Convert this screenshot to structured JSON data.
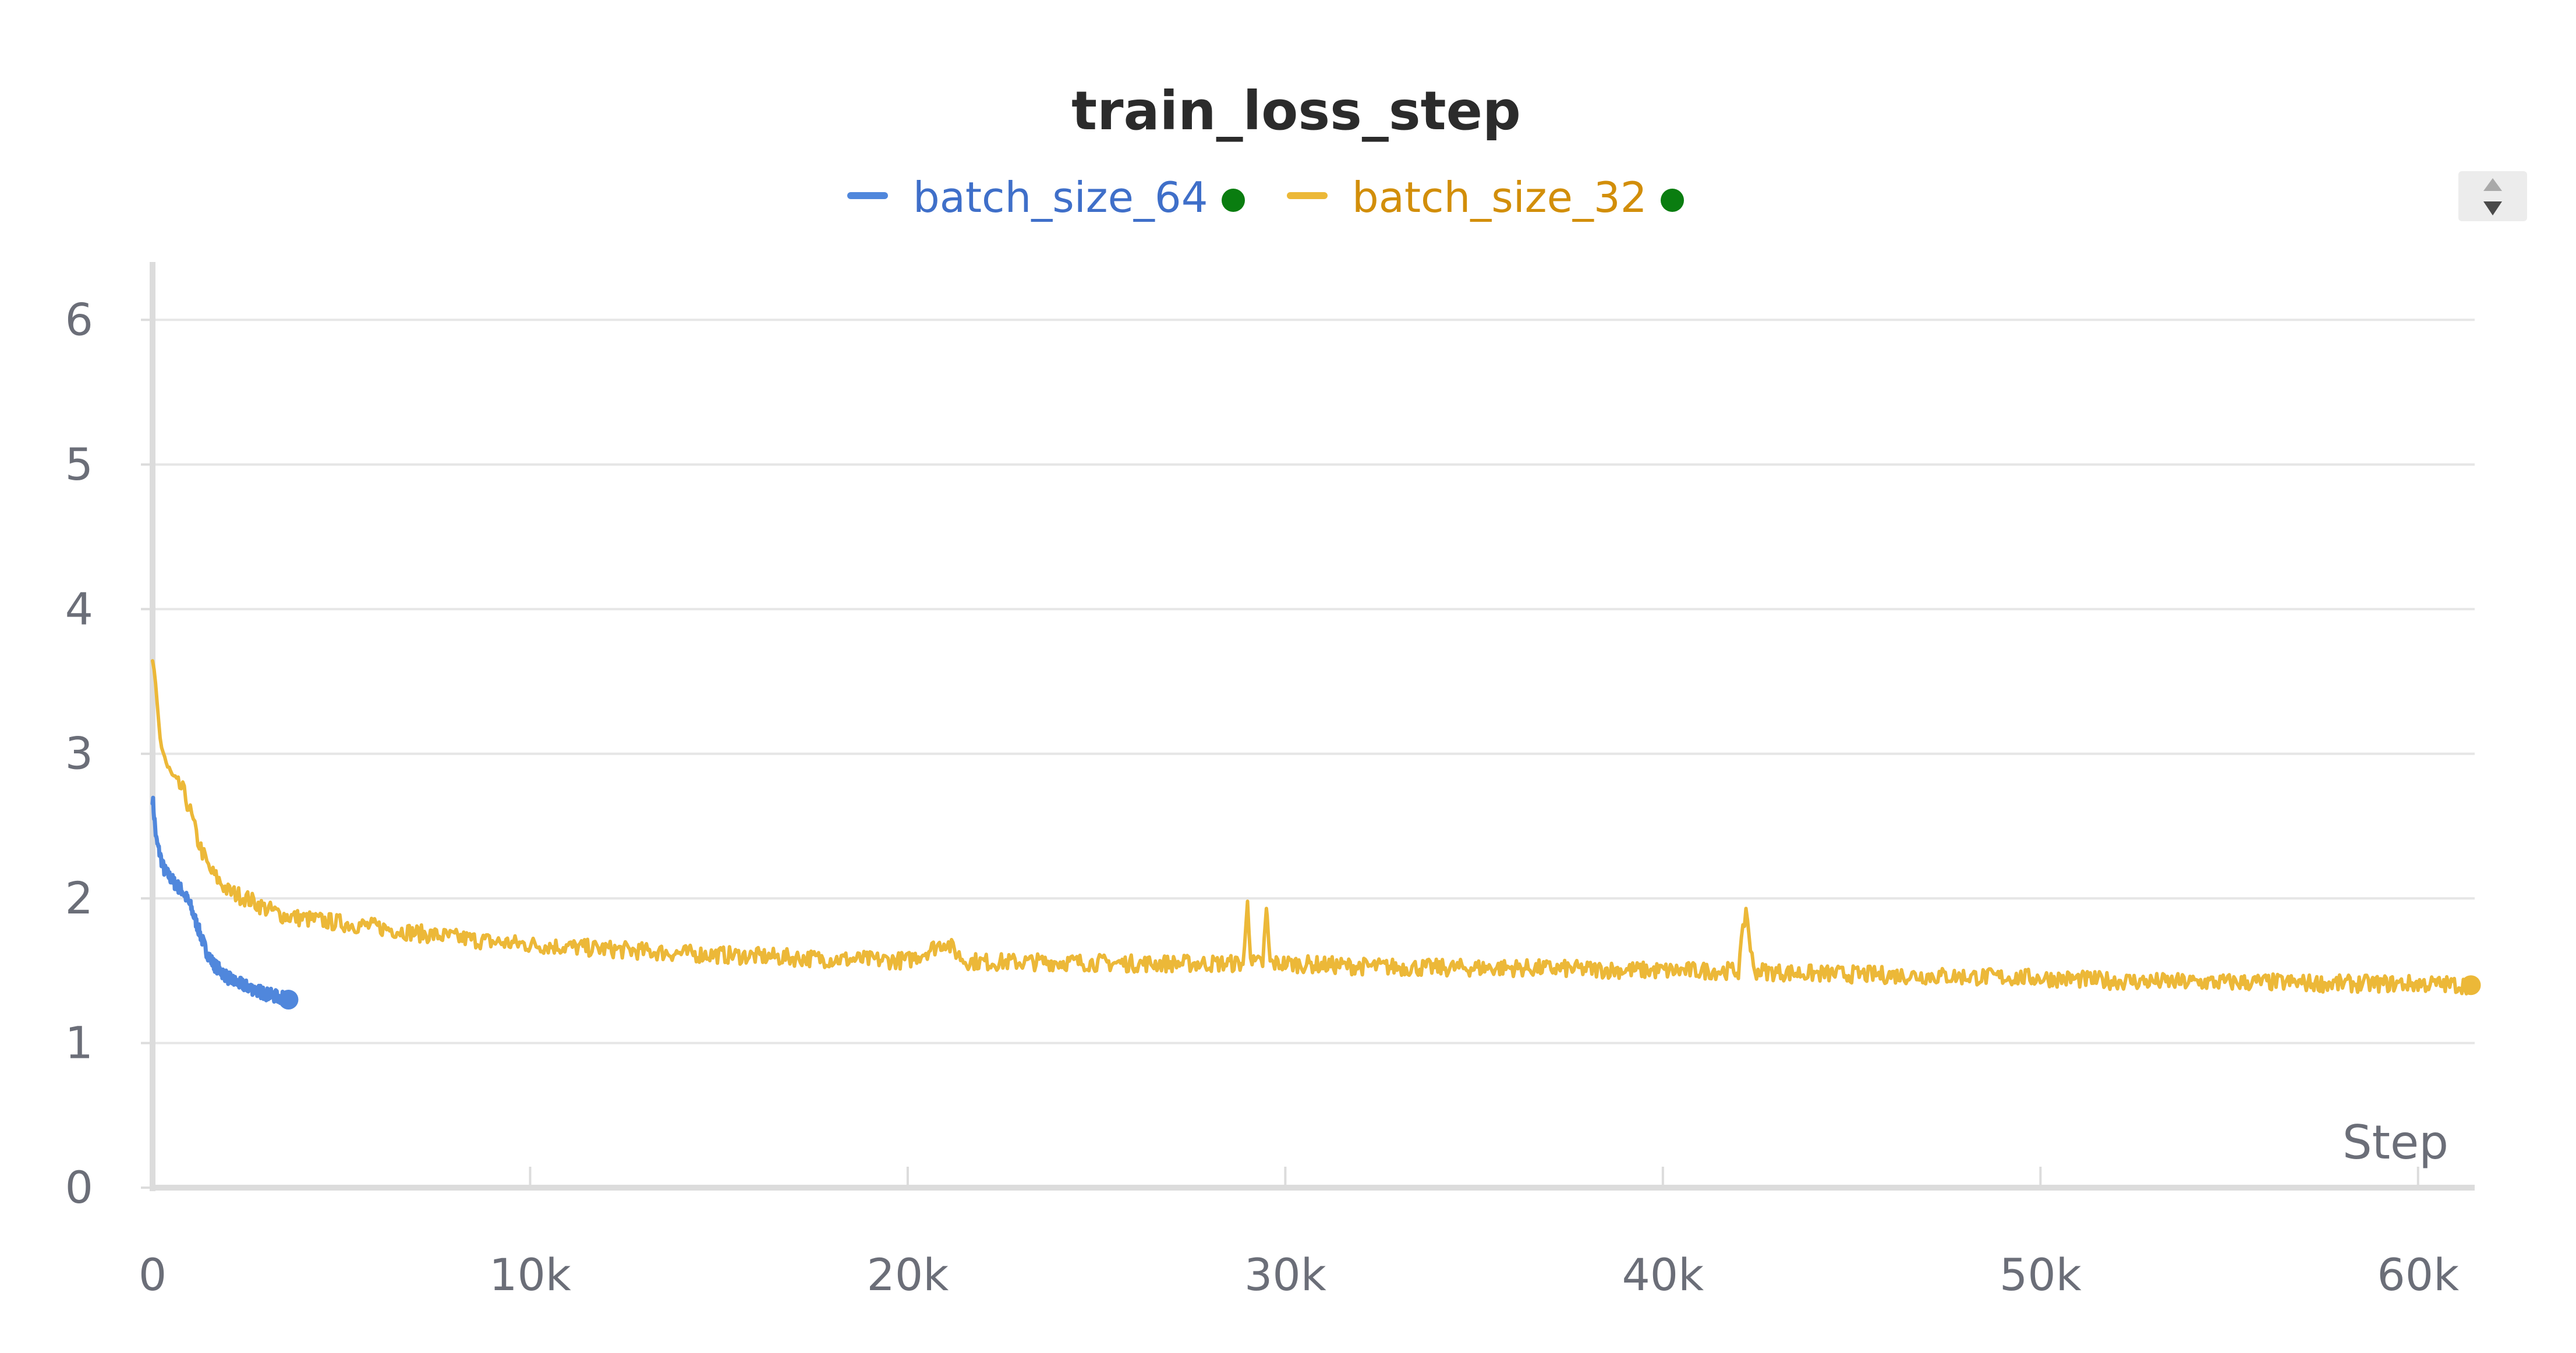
{
  "chart_data": {
    "type": "line",
    "title": "train_loss_step",
    "xlabel": "Step",
    "ylabel": "",
    "xlim": [
      0,
      61500
    ],
    "ylim": [
      0,
      6.4
    ],
    "x_ticks": [
      0,
      10000,
      20000,
      30000,
      40000,
      50000,
      60000
    ],
    "x_tick_labels": [
      "0",
      "10k",
      "20k",
      "30k",
      "40k",
      "50k",
      "60k"
    ],
    "y_ticks": [
      0,
      1,
      2,
      3,
      4,
      5,
      6
    ],
    "y_tick_labels": [
      "0",
      "1",
      "2",
      "3",
      "4",
      "5",
      "6"
    ],
    "grid": true,
    "legend_position": "top-center",
    "series": [
      {
        "name": "batch_size_64",
        "color": "#5087dc",
        "status_color": "#0a7d10",
        "x": [
          0,
          50,
          100,
          200,
          300,
          450,
          600,
          800,
          1000,
          1200,
          1400,
          1600,
          1800,
          2000,
          2200,
          2400,
          2700,
          3000,
          3300,
          3600
        ],
        "y": [
          2.7,
          2.55,
          2.4,
          2.3,
          2.2,
          2.15,
          2.1,
          2.05,
          1.95,
          1.8,
          1.65,
          1.55,
          1.5,
          1.45,
          1.42,
          1.4,
          1.37,
          1.34,
          1.32,
          1.3
        ]
      },
      {
        "name": "batch_size_32",
        "color": "#ecb838",
        "status_color": "#0a7d10",
        "x": [
          0,
          200,
          400,
          600,
          800,
          1000,
          1200,
          1500,
          2000,
          2500,
          3000,
          3500,
          4000,
          5000,
          6000,
          7000,
          8000,
          9000,
          10000,
          12000,
          14000,
          16000,
          18000,
          20000,
          21000,
          21500,
          22000,
          24000,
          26000,
          28000,
          28900,
          29000,
          29100,
          29400,
          29500,
          29600,
          30000,
          32000,
          34000,
          36000,
          38000,
          40000,
          42000,
          42200,
          42400,
          43000,
          44000,
          46000,
          48000,
          50000,
          52000,
          54000,
          56000,
          58000,
          60000,
          61400
        ],
        "y": [
          3.65,
          3.1,
          2.9,
          2.8,
          2.75,
          2.6,
          2.4,
          2.2,
          2.05,
          2.0,
          1.93,
          1.88,
          1.86,
          1.83,
          1.8,
          1.76,
          1.73,
          1.7,
          1.68,
          1.65,
          1.62,
          1.6,
          1.58,
          1.57,
          1.7,
          1.57,
          1.56,
          1.56,
          1.55,
          1.55,
          1.55,
          1.98,
          1.55,
          1.55,
          1.93,
          1.55,
          1.55,
          1.53,
          1.52,
          1.52,
          1.51,
          1.5,
          1.5,
          1.93,
          1.5,
          1.49,
          1.48,
          1.47,
          1.46,
          1.45,
          1.43,
          1.42,
          1.42,
          1.41,
          1.41,
          1.4
        ]
      }
    ]
  }
}
